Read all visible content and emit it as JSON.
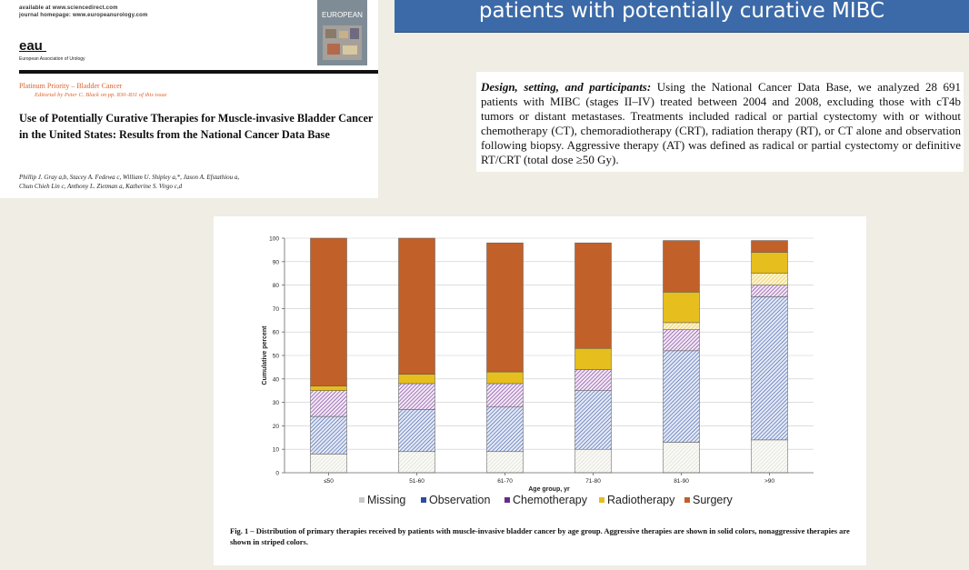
{
  "article": {
    "availability_line": "available at www.sciencedirect.com",
    "homepage_line": "journal homepage: www.europeanurology.com",
    "logo_text": "eau",
    "logo_subtitle": "European Association of Urology",
    "journal_cover_text": "EUROPEAN",
    "priority": "Platinum Priority – Bladder Cancer",
    "editorial_note": "Editorial by Peter C. Black on pp. 830–831 of this issue",
    "title": "Use of Potentially Curative Therapies for Muscle-invasive Bladder Cancer in the United States: Results from the National Cancer Data Base",
    "authors_line1": "Phillip J. Gray a,b, Stacey A. Fedewa c, William U. Shipley a,*, Jason A. Efstathiou a,",
    "authors_line2": "Chun Chieh Lin c, Anthony L. Zietman a, Katherine S. Virgo c,d"
  },
  "banner": {
    "text": "patients with potentially curative MIBC"
  },
  "abstract": {
    "lead": "Design, setting, and participants:",
    "body": " Using the National Cancer Data Base, we analyzed 28 691 patients with MIBC (stages II–IV) treated between 2004 and 2008, excluding those with cT4b tumors or distant metastases. Treatments included radical or partial cystectomy with or without chemotherapy (CT), chemoradiotherapy (CRT), radiation therapy (RT), or CT alone and observation following biopsy. Aggressive therapy (AT) was defined as radical or partial cystectomy or definitive RT/CRT (total dose ≥50 Gy)."
  },
  "chart_data": {
    "type": "bar",
    "stacked": true,
    "title": "",
    "xlabel": "Age group, yr",
    "ylabel": "Cumulative percent",
    "ylim": [
      0,
      100
    ],
    "yticks": [
      0,
      10,
      20,
      30,
      40,
      50,
      60,
      70,
      80,
      90,
      100
    ],
    "grid": true,
    "legend_position": "bottom",
    "categories": [
      "≤50",
      "51-60",
      "61-70",
      "71-80",
      "81-90",
      ">90"
    ],
    "legend": [
      "Missing",
      "Observation",
      "Chemotherapy",
      "Radiotherapy",
      "Surgery"
    ],
    "series": [
      {
        "name": "Missing",
        "values": [
          8,
          9,
          9,
          10,
          13,
          14
        ],
        "color": "#c8c8c8",
        "pattern": "stripe"
      },
      {
        "name": "Observation",
        "values": [
          16,
          18,
          19,
          25,
          39,
          61
        ],
        "color": "#2d4ea0",
        "pattern": "stripe"
      },
      {
        "name": "Chemotherapy",
        "values": [
          11,
          11,
          10,
          9,
          9,
          5
        ],
        "color": "#6a2a8a",
        "pattern": "stripe"
      },
      {
        "name": "Radiotherapy",
        "segments": [
          {
            "style": "stripe",
            "values": [
              0,
              0,
              0,
              0,
              3,
              5
            ]
          },
          {
            "style": "solid",
            "values": [
              2,
              4,
              5,
              9,
              13,
              9
            ]
          }
        ],
        "color": "#e6be1e"
      },
      {
        "name": "Surgery",
        "values": [
          63,
          58,
          55,
          45,
          22,
          5
        ],
        "color": "#c2602a",
        "pattern": "solid"
      }
    ]
  },
  "figure": {
    "caption": "Fig. 1 – Distribution of primary therapies received by patients with muscle-invasive bladder cancer by age group. Aggressive therapies are shown in solid colors, nonaggressive therapies are shown in striped colors."
  }
}
